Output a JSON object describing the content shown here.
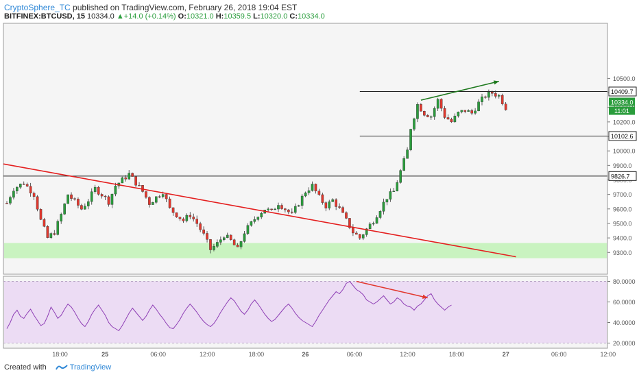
{
  "header": {
    "author": "CryptoSphere_TC",
    "published_text": " published on TradingView.com, February 26, 2018 19:04 EST",
    "symbol": "BITFINEX:BTCUSD, 15",
    "last": "10334.0",
    "change": "+14.0 (+0.14%)",
    "o_label": "O:",
    "o_value": "10321.0",
    "h_label": "H:",
    "h_value": "10359.5",
    "l_label": "L:",
    "l_value": "10320.0",
    "c_label": "C:",
    "c_value": "10334.0"
  },
  "footer": {
    "created_with": "Created with",
    "brand": "TradingView"
  },
  "colors": {
    "bull": "#2a9d3c",
    "bear": "#e2382e",
    "trend": "#e41f1f",
    "divergence_up": "#1f7a1f",
    "support_zone": "#c9f3c0",
    "rsi_band": "#ecdcf4",
    "rsi_line": "#8e3fb5",
    "level_line": "#222222"
  },
  "chart_data": [
    {
      "type": "candlestick",
      "symbol": "BITFINEX:BTCUSD",
      "interval": "15",
      "ylim": [
        9150,
        10880
      ],
      "y_ticks": [
        "10500.0",
        "10400.0",
        "10300.0",
        "10200.0",
        "10100.0",
        "10000.0",
        "9900.0",
        "9800.0",
        "9700.0",
        "9600.0",
        "9500.0",
        "9400.0",
        "9300.0"
      ],
      "x_ticks": [
        "18:00",
        "25",
        "06:00",
        "12:00",
        "18:00",
        "26",
        "06:00",
        "12:00",
        "18:00",
        "27",
        "06:00",
        "12:00"
      ],
      "level_labels": [
        {
          "value": 10409.7,
          "label": "10409.7"
        },
        {
          "value": 10102.6,
          "label": "10102.6"
        },
        {
          "value": 9826.7,
          "label": "9826.7"
        }
      ],
      "last_price_label": "10334.0",
      "countdown_label": "11:01",
      "support_zone": [
        9260,
        9365
      ],
      "price_path": [
        [
          0,
          9640
        ],
        [
          2,
          9740
        ],
        [
          5,
          9780
        ],
        [
          8,
          9700
        ],
        [
          10,
          9520
        ],
        [
          12,
          9400
        ],
        [
          14,
          9440
        ],
        [
          16,
          9560
        ],
        [
          18,
          9700
        ],
        [
          20,
          9650
        ],
        [
          22,
          9600
        ],
        [
          24,
          9660
        ],
        [
          26,
          9740
        ],
        [
          28,
          9700
        ],
        [
          30,
          9650
        ],
        [
          32,
          9760
        ],
        [
          34,
          9800
        ],
        [
          36,
          9840
        ],
        [
          38,
          9780
        ],
        [
          40,
          9720
        ],
        [
          42,
          9640
        ],
        [
          44,
          9680
        ],
        [
          46,
          9720
        ],
        [
          48,
          9600
        ],
        [
          50,
          9560
        ],
        [
          52,
          9520
        ],
        [
          54,
          9560
        ],
        [
          56,
          9500
        ],
        [
          58,
          9420
        ],
        [
          60,
          9320
        ],
        [
          62,
          9360
        ],
        [
          64,
          9420
        ],
        [
          66,
          9380
        ],
        [
          68,
          9320
        ],
        [
          70,
          9440
        ],
        [
          72,
          9500
        ],
        [
          74,
          9560
        ],
        [
          76,
          9600
        ],
        [
          78,
          9580
        ],
        [
          80,
          9640
        ],
        [
          82,
          9600
        ],
        [
          84,
          9560
        ],
        [
          86,
          9640
        ],
        [
          88,
          9720
        ],
        [
          90,
          9760
        ],
        [
          92,
          9680
        ],
        [
          94,
          9620
        ],
        [
          96,
          9660
        ],
        [
          98,
          9600
        ],
        [
          100,
          9520
        ],
        [
          102,
          9440
        ],
        [
          104,
          9400
        ],
        [
          106,
          9460
        ],
        [
          108,
          9520
        ],
        [
          110,
          9600
        ],
        [
          112,
          9680
        ],
        [
          114,
          9720
        ],
        [
          116,
          9860
        ],
        [
          118,
          10000
        ],
        [
          119,
          10160
        ],
        [
          121,
          10320
        ],
        [
          123,
          10260
        ],
        [
          125,
          10240
        ],
        [
          127,
          10350
        ],
        [
          129,
          10240
        ],
        [
          131,
          10200
        ],
        [
          133,
          10260
        ],
        [
          135,
          10280
        ],
        [
          137,
          10260
        ],
        [
          139,
          10330
        ],
        [
          141,
          10380
        ],
        [
          143,
          10400
        ],
        [
          145,
          10380
        ],
        [
          147,
          10300
        ]
      ],
      "trendline": {
        "from": [
          0,
          9910
        ],
        "to": [
          150,
          9270
        ]
      },
      "divergence_price": {
        "from": [
          122,
          10350
        ],
        "to": [
          145,
          10480
        ]
      }
    },
    {
      "type": "line",
      "name": "RSI",
      "ylim": [
        15,
        85
      ],
      "y_ticks": [
        "80.0000",
        "60.0000",
        "40.0000",
        "20.0000"
      ],
      "band": [
        20,
        80
      ],
      "values": [
        34,
        40,
        48,
        52,
        46,
        44,
        49,
        53,
        47,
        42,
        37,
        39,
        46,
        55,
        50,
        44,
        47,
        53,
        58,
        55,
        50,
        44,
        39,
        36,
        41,
        48,
        53,
        57,
        52,
        47,
        40,
        36,
        34,
        32,
        37,
        43,
        49,
        54,
        50,
        46,
        42,
        46,
        52,
        57,
        53,
        48,
        44,
        39,
        35,
        34,
        38,
        43,
        49,
        54,
        58,
        54,
        50,
        45,
        41,
        38,
        36,
        39,
        44,
        50,
        55,
        60,
        64,
        61,
        56,
        51,
        48,
        52,
        58,
        62,
        58,
        53,
        48,
        44,
        41,
        43,
        47,
        51,
        55,
        58,
        54,
        49,
        45,
        42,
        40,
        38,
        36,
        41,
        47,
        52,
        57,
        62,
        66,
        70,
        68,
        72,
        78,
        80,
        76,
        72,
        70,
        67,
        62,
        60,
        58,
        60,
        63,
        66,
        62,
        58,
        60,
        64,
        62,
        58,
        56,
        55,
        52,
        56,
        58,
        62,
        66,
        68,
        62,
        58,
        55,
        52,
        55,
        57
      ],
      "divergence": {
        "from": [
          103,
          80
        ],
        "to": [
          124,
          64
        ]
      }
    }
  ]
}
